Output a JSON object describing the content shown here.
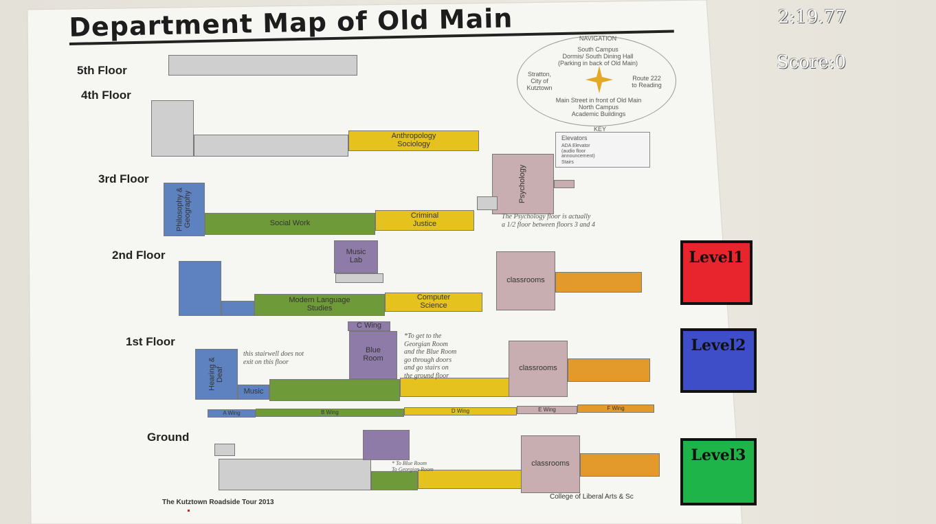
{
  "hud": {
    "timer": "2:19.77",
    "score": "Score:0"
  },
  "levels": [
    {
      "label": "Level1",
      "color": "#e8242c"
    },
    {
      "label": "Level2",
      "color": "#3d4ec8"
    },
    {
      "label": "Level3",
      "color": "#1fb44a"
    }
  ],
  "map": {
    "title": "Department Map of Old Main",
    "floors": {
      "fifth": "5th Floor",
      "fourth": "4th Floor",
      "third": "3rd Floor",
      "second": "2nd Floor",
      "first": "1st Floor",
      "ground": "Ground"
    },
    "rooms": {
      "anthropology": "Anthropology\nSociology",
      "philosophy": "Philosophy &\nGeography",
      "social_work": "Social Work",
      "criminal_justice": "Criminal\nJustice",
      "psychology": "Psychology",
      "music_lab": "Music\nLab",
      "modern_language": "Modern Language\nStudies",
      "computer_science": "Computer\nScience",
      "classrooms": "classrooms",
      "c_wing": "C Wing",
      "music": "Music",
      "hearing": "Hearing & Deaf",
      "blue_room": "Blue\nRoom",
      "a_wing": "A Wing",
      "b_wing": "B Wing",
      "d_wing": "D Wing",
      "e_wing": "E Wing",
      "f_wing": "F Wing"
    },
    "compass": {
      "heading": "NAVIGATION",
      "south": "South Campus\nDormis/ South Dining Hall\n(Parking in back of Old Main)",
      "west": "Stratton,\nCity of\nKutztown",
      "east": "Route 222\nto Reading",
      "north": "Main Street in front of Old Main\nNorth Campus\nAcademic Buildings"
    },
    "key": {
      "heading": "KEY",
      "elevators": "Elevators",
      "ada": "ADA Elevator\n(audio floor\nannouncement)",
      "stairs": "Stairs"
    },
    "notes": {
      "psych": "The Psychology floor is actually\na 1/2 floor between floors 3 and 4",
      "stairwell": "this stairwell does not\nexit on this floor",
      "georgian": "*To get to the\nGeorgian Room\nand the Blue Room\ngo through doors\nand go stairs on\nthe ground floor",
      "ground": "* To Blue Room\nTo Georgian Room"
    },
    "footer_left": "The Kutztown Roadside Tour 2013",
    "footer_right": "College of Liberal Arts & Sc"
  }
}
